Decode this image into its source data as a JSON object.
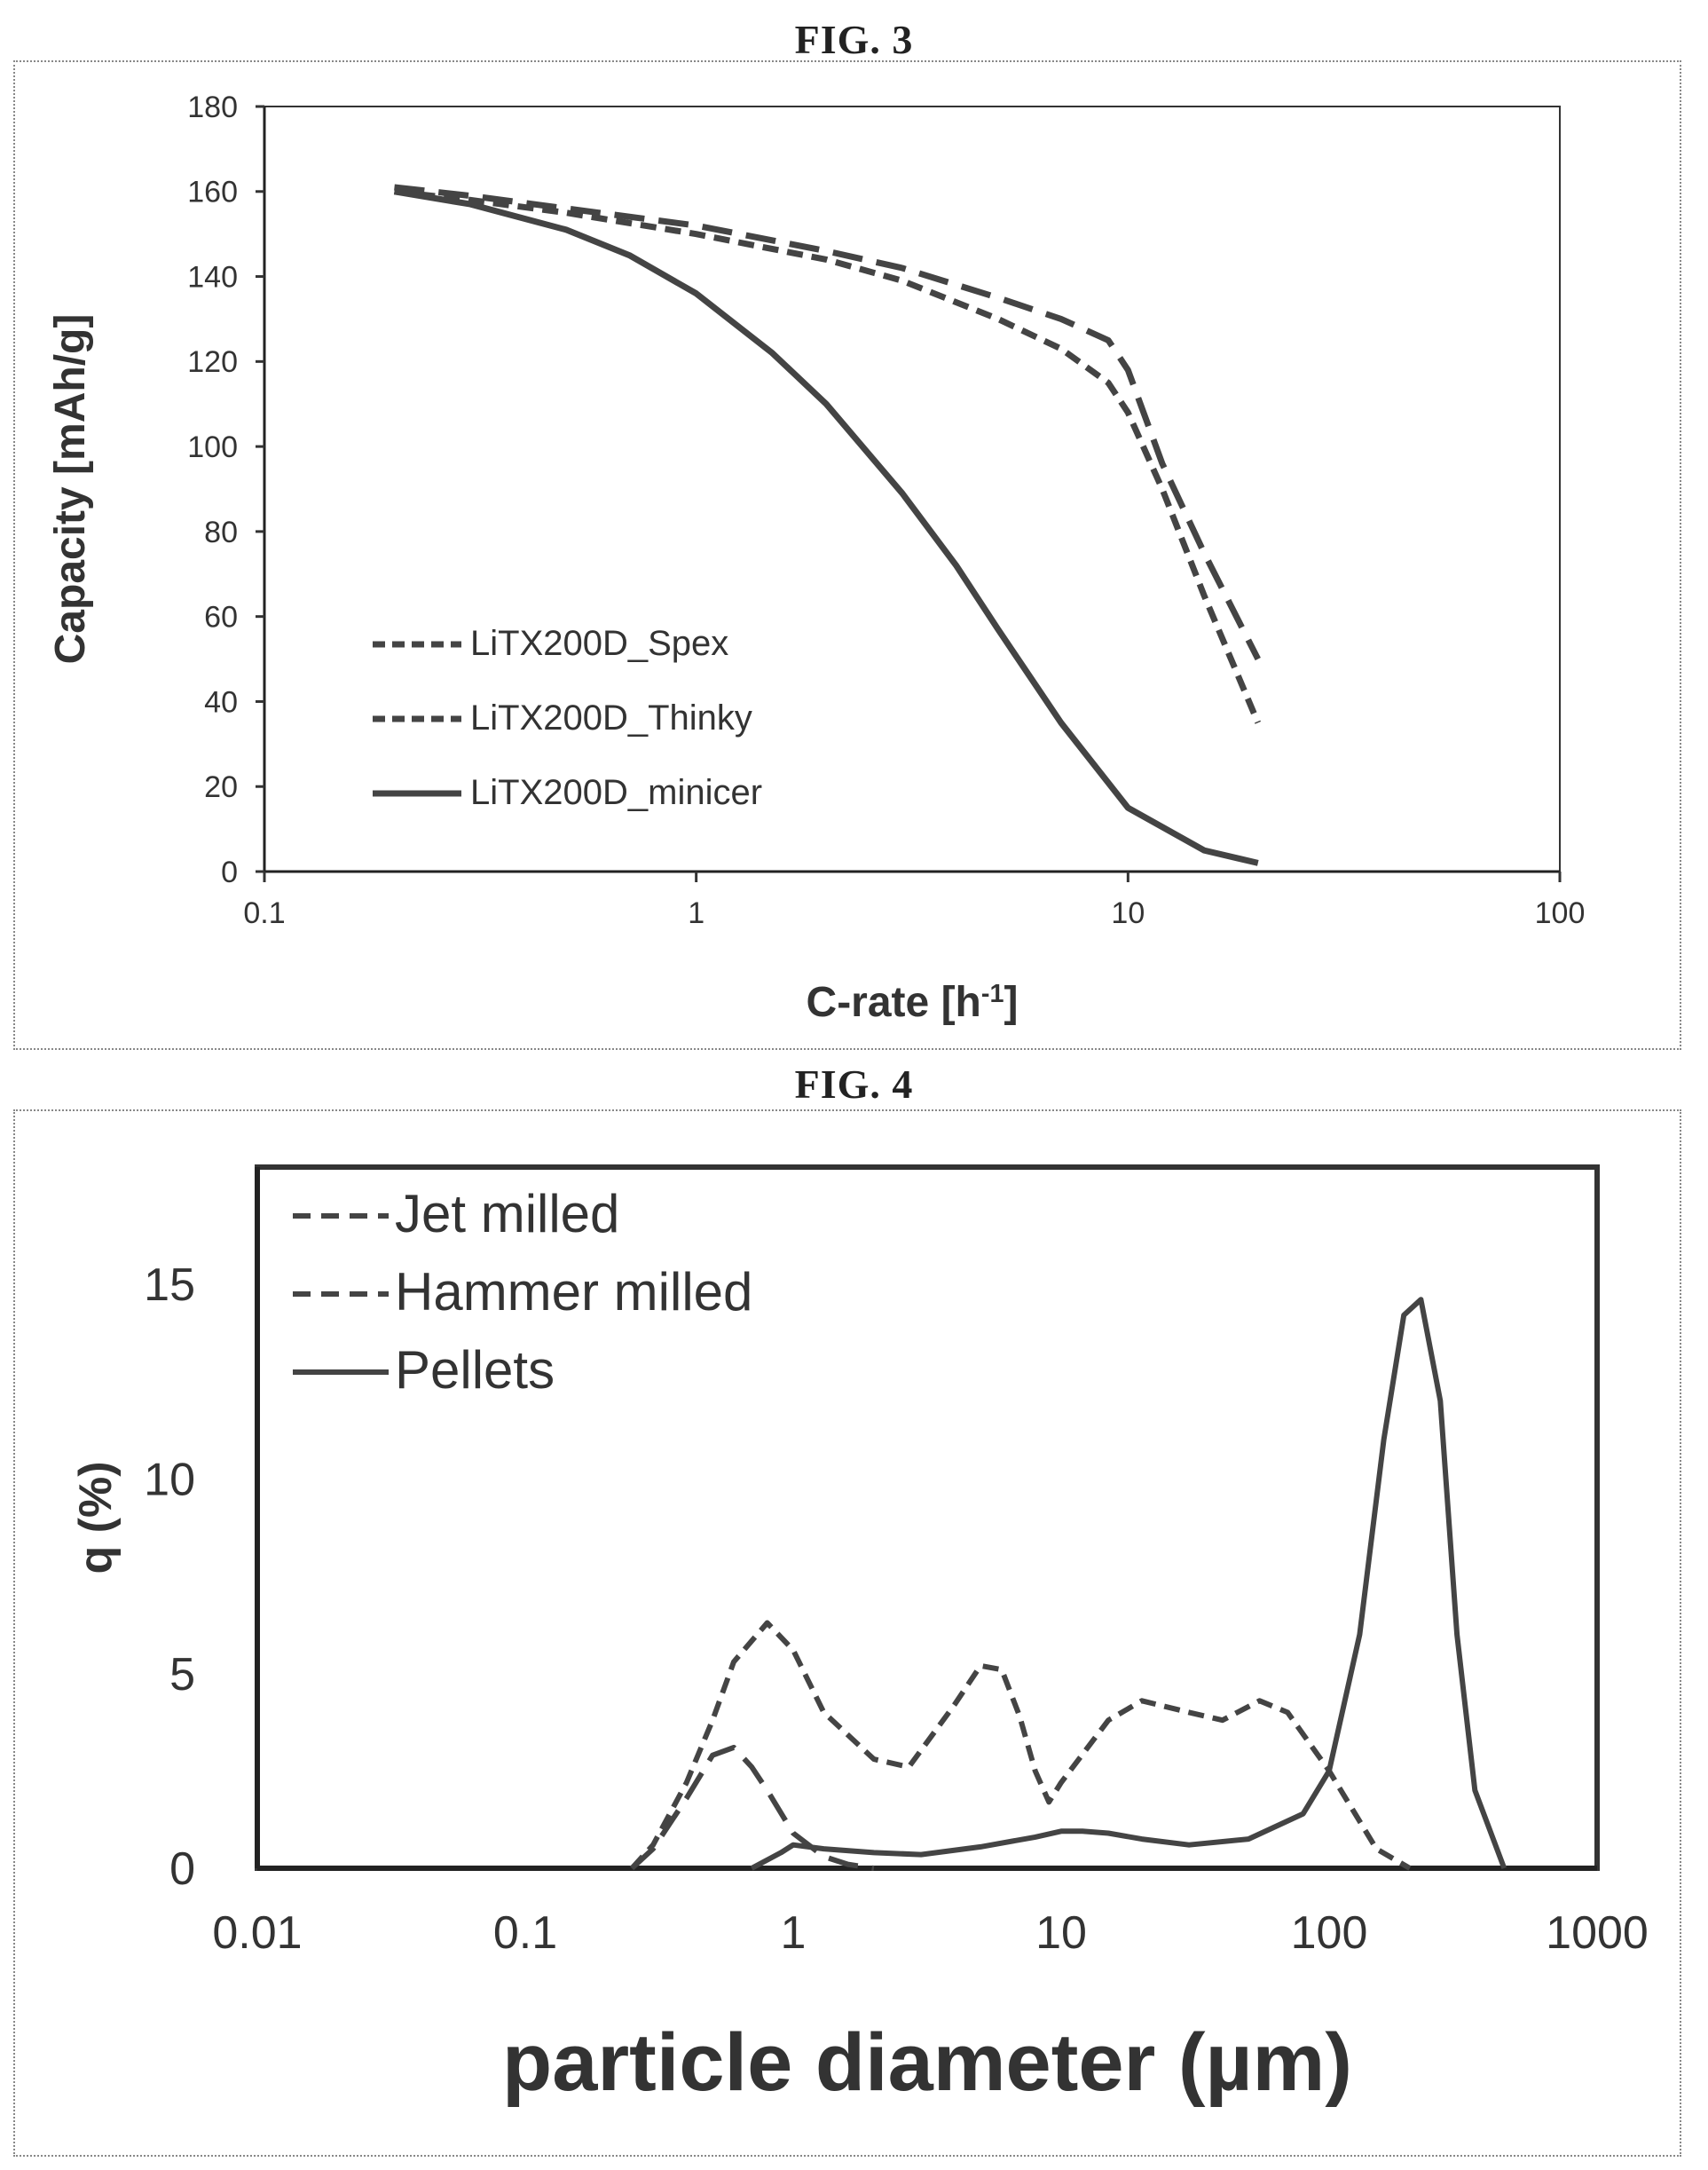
{
  "figures": [
    {
      "label": "FIG. 3",
      "chart_data": {
        "type": "line",
        "xlabel": "C-rate [h",
        "xlabel_sup": "-1",
        "xlabel_end": "]",
        "ylabel": "Capacity [mAh/g]",
        "x_scale": "log",
        "xlim": [
          0.1,
          100
        ],
        "ylim": [
          0,
          180
        ],
        "x_ticks": [
          "0.1",
          "1",
          "10",
          "100"
        ],
        "y_ticks": [
          "0",
          "20",
          "40",
          "60",
          "80",
          "100",
          "120",
          "140",
          "160",
          "180"
        ],
        "grid": false,
        "legend_position": "lower-left",
        "series": [
          {
            "name": "LiTX200D_Spex",
            "style": "long-dash",
            "x": [
              0.2,
              0.3,
              0.5,
              1,
              2,
              3,
              5,
              7,
              9,
              10,
              12,
              15,
              20
            ],
            "y": [
              161,
              159,
              156,
              152,
              146,
              142,
              135,
              130,
              125,
              118,
              96,
              75,
              50
            ]
          },
          {
            "name": "LiTX200D_Thinky",
            "style": "short-dash",
            "x": [
              0.2,
              0.3,
              0.5,
              1,
              2,
              3,
              5,
              7,
              9,
              10,
              12,
              15,
              20
            ],
            "y": [
              160,
              158,
              155,
              150,
              144,
              139,
              130,
              123,
              115,
              108,
              90,
              65,
              35
            ]
          },
          {
            "name": "LiTX200D_minicer",
            "style": "solid",
            "x": [
              0.2,
              0.3,
              0.5,
              0.7,
              1,
              1.5,
              2,
              3,
              4,
              5,
              7,
              10,
              15,
              20
            ],
            "y": [
              160,
              157,
              151,
              145,
              136,
              122,
              110,
              89,
              72,
              57,
              35,
              15,
              5,
              2
            ]
          }
        ]
      }
    },
    {
      "label": "FIG. 4",
      "chart_data": {
        "type": "line",
        "xlabel": "particle diameter (µm)",
        "ylabel": "q (%)",
        "x_scale": "log",
        "xlim": [
          0.01,
          1000
        ],
        "ylim": [
          0,
          18
        ],
        "x_ticks": [
          "0.01",
          "0.1",
          "1",
          "10",
          "100",
          "1000"
        ],
        "y_ticks": [
          "0",
          "5",
          "10",
          "15"
        ],
        "grid": false,
        "legend_position": "top-left",
        "series": [
          {
            "name": "Jet milled",
            "style": "long-dash",
            "x": [
              0.25,
              0.3,
              0.4,
              0.5,
              0.6,
              0.7,
              0.8,
              1,
              1.3,
              1.6,
              2
            ],
            "y": [
              0,
              0.5,
              1.8,
              2.9,
              3.1,
              2.6,
              2,
              0.9,
              0.3,
              0.1,
              0
            ]
          },
          {
            "name": "Hammer milled",
            "style": "short-dash",
            "x": [
              0.25,
              0.3,
              0.4,
              0.5,
              0.6,
              0.8,
              1,
              1.3,
              2,
              2.7,
              4,
              5,
              6,
              7,
              8,
              9,
              10,
              15,
              20,
              30,
              40,
              55,
              70,
              100,
              150,
              200
            ],
            "y": [
              0,
              0.6,
              2.2,
              3.8,
              5.3,
              6.3,
              5.6,
              4,
              2.8,
              2.6,
              4.2,
              5.2,
              5.1,
              3.9,
              2.5,
              1.7,
              2.2,
              3.8,
              4.3,
              4,
              3.8,
              4.3,
              4,
              2.5,
              0.5,
              0
            ]
          },
          {
            "name": "Pellets",
            "style": "solid",
            "x": [
              0.7,
              0.9,
              1,
              1.3,
              2,
              3,
              5,
              8,
              10,
              12,
              15,
              20,
              30,
              50,
              80,
              100,
              130,
              160,
              190,
              220,
              260,
              300,
              350,
              450
            ],
            "y": [
              0,
              0.4,
              0.6,
              0.5,
              0.4,
              0.35,
              0.55,
              0.8,
              0.95,
              0.95,
              0.9,
              0.75,
              0.6,
              0.75,
              1.4,
              2.5,
              6,
              11,
              14.2,
              14.6,
              12,
              6,
              2,
              0
            ]
          }
        ]
      }
    }
  ]
}
